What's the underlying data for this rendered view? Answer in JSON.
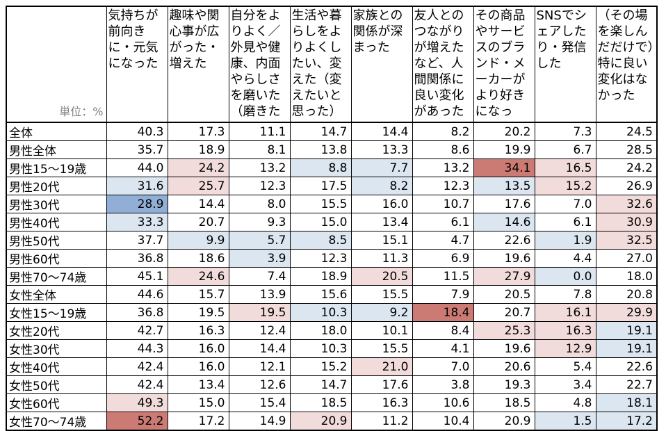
{
  "palette": {
    "lp": "#F2DCDB",
    "lb": "#DCE6F1",
    "mb": "#91AFD6",
    "mr": "#CC7B74",
    "border": "#000000",
    "unit_text_color": "#7F7F7F"
  },
  "chart_data": {
    "type": "table",
    "unit_label": "単位：%",
    "columns": [
      "気持ちが前向きに・元気になった",
      "趣味や関心事が広がった・増えた",
      "自分をよりよく／外見や健康、内面やらしさを磨いた（磨きた",
      "生活や暮らしをよりよくしたい、変えた（変えたいと思った）",
      "家族との関係が深まった",
      "友人とのつながりが増えたなど、人間関係に良い変化があった",
      "その商品やサービスのブランド・メーカーがより好きになっ",
      "SNSでシェアしたり・発信した",
      "（その場を楽しんだだけで）特に良い変化はなかった"
    ],
    "highlight_legend": {
      "lp": "light pink (above average)",
      "lb": "light blue (below average)",
      "mb": "medium blue (far below average)",
      "mr": "medium red (far above average)"
    },
    "rows": [
      {
        "label": "全体",
        "values": [
          "40.3",
          "17.3",
          "11.1",
          "14.7",
          "14.4",
          "8.2",
          "20.2",
          "7.3",
          "24.5"
        ],
        "highlights": [
          null,
          null,
          null,
          null,
          null,
          null,
          null,
          null,
          null
        ]
      },
      {
        "label": "男性全体",
        "values": [
          "35.7",
          "18.9",
          "8.1",
          "13.8",
          "13.3",
          "8.6",
          "19.9",
          "6.7",
          "28.5"
        ],
        "highlights": [
          null,
          null,
          null,
          null,
          null,
          null,
          null,
          null,
          null
        ]
      },
      {
        "label": "男性15～19歳",
        "values": [
          "44.0",
          "24.2",
          "13.2",
          "8.8",
          "7.7",
          "13.2",
          "34.1",
          "16.5",
          "24.2"
        ],
        "highlights": [
          null,
          "lp",
          null,
          "lb",
          "lb",
          null,
          "mr",
          "lp",
          null
        ]
      },
      {
        "label": "男性20代",
        "values": [
          "31.6",
          "25.7",
          "12.3",
          "17.5",
          "8.2",
          "12.3",
          "13.5",
          "15.2",
          "26.9"
        ],
        "highlights": [
          "lb",
          "lp",
          null,
          null,
          "lb",
          null,
          "lb",
          "lp",
          null
        ]
      },
      {
        "label": "男性30代",
        "values": [
          "28.9",
          "14.4",
          "8.0",
          "15.5",
          "16.0",
          "10.7",
          "17.6",
          "7.0",
          "32.6"
        ],
        "highlights": [
          "mb",
          null,
          null,
          null,
          null,
          null,
          null,
          null,
          "lp"
        ]
      },
      {
        "label": "男性40代",
        "values": [
          "33.3",
          "20.7",
          "9.3",
          "15.0",
          "13.4",
          "6.1",
          "14.6",
          "6.1",
          "30.9"
        ],
        "highlights": [
          "lb",
          null,
          null,
          null,
          null,
          null,
          "lb",
          null,
          "lp"
        ]
      },
      {
        "label": "男性50代",
        "values": [
          "37.7",
          "9.9",
          "5.7",
          "8.5",
          "15.1",
          "4.7",
          "22.6",
          "1.9",
          "32.5"
        ],
        "highlights": [
          null,
          "lb",
          "lb",
          "lb",
          null,
          null,
          null,
          "lb",
          "lp"
        ]
      },
      {
        "label": "男性60代",
        "values": [
          "36.8",
          "18.6",
          "3.9",
          "12.3",
          "11.3",
          "6.9",
          "19.6",
          "4.4",
          "27.0"
        ],
        "highlights": [
          null,
          null,
          "lb",
          null,
          null,
          null,
          null,
          null,
          null
        ]
      },
      {
        "label": "男性70～74歳",
        "values": [
          "45.1",
          "24.6",
          "7.4",
          "18.9",
          "20.5",
          "11.5",
          "27.9",
          "0.0",
          "18.0"
        ],
        "highlights": [
          null,
          "lp",
          null,
          null,
          "lp",
          null,
          "lp",
          "lb",
          null
        ]
      },
      {
        "label": "女性全体",
        "values": [
          "44.6",
          "15.7",
          "13.9",
          "15.6",
          "15.5",
          "7.9",
          "20.5",
          "7.8",
          "20.8"
        ],
        "highlights": [
          null,
          null,
          null,
          null,
          null,
          null,
          null,
          null,
          null
        ]
      },
      {
        "label": "女性15～19歳",
        "values": [
          "36.8",
          "19.5",
          "19.5",
          "10.3",
          "9.2",
          "18.4",
          "20.7",
          "16.1",
          "29.9"
        ],
        "highlights": [
          null,
          null,
          "lp",
          "lb",
          "lb",
          "mr",
          null,
          "lp",
          "lp"
        ]
      },
      {
        "label": "女性20代",
        "values": [
          "42.7",
          "16.3",
          "12.4",
          "18.0",
          "10.1",
          "8.4",
          "25.3",
          "16.3",
          "19.1"
        ],
        "highlights": [
          null,
          null,
          null,
          null,
          null,
          null,
          "lp",
          "lp",
          "lb"
        ]
      },
      {
        "label": "女性30代",
        "values": [
          "44.3",
          "16.0",
          "14.4",
          "10.3",
          "15.5",
          "4.1",
          "19.6",
          "12.9",
          "19.1"
        ],
        "highlights": [
          null,
          null,
          null,
          null,
          null,
          null,
          null,
          "lp",
          "lb"
        ]
      },
      {
        "label": "女性40代",
        "values": [
          "42.4",
          "16.0",
          "12.1",
          "15.2",
          "21.0",
          "7.0",
          "20.6",
          "5.4",
          "22.6"
        ],
        "highlights": [
          null,
          null,
          null,
          null,
          "lp",
          null,
          null,
          null,
          null
        ]
      },
      {
        "label": "女性50代",
        "values": [
          "42.4",
          "13.4",
          "12.6",
          "14.7",
          "17.6",
          "3.8",
          "19.3",
          "3.4",
          "22.7"
        ],
        "highlights": [
          null,
          null,
          null,
          null,
          null,
          null,
          null,
          null,
          null
        ]
      },
      {
        "label": "女性60代",
        "values": [
          "49.3",
          "15.0",
          "15.4",
          "18.5",
          "16.3",
          "10.6",
          "18.5",
          "4.8",
          "18.1"
        ],
        "highlights": [
          "lp",
          null,
          null,
          null,
          null,
          null,
          null,
          null,
          "lb"
        ]
      },
      {
        "label": "女性70～74歳",
        "values": [
          "52.2",
          "17.2",
          "14.9",
          "20.9",
          "11.2",
          "10.4",
          "20.9",
          "1.5",
          "17.2"
        ],
        "highlights": [
          "mr",
          null,
          null,
          "lp",
          null,
          null,
          null,
          "lb",
          "lb"
        ]
      }
    ]
  }
}
